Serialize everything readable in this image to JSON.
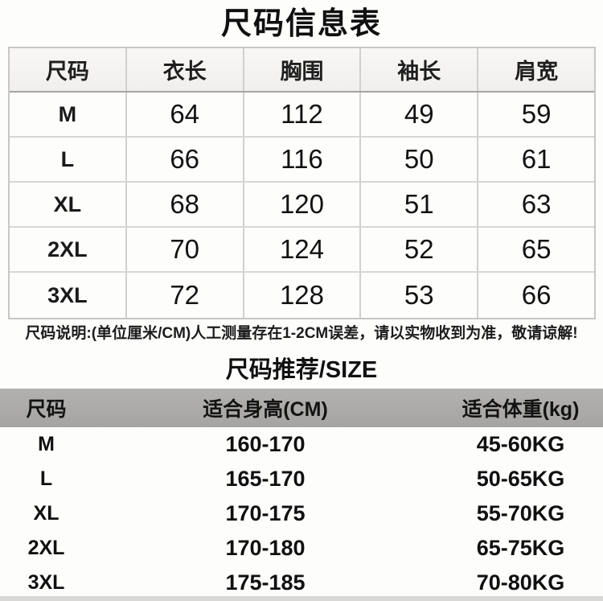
{
  "title": "尺码信息表",
  "size_table": {
    "headers": [
      "尺码",
      "衣长",
      "胸围",
      "袖长",
      "肩宽"
    ],
    "rows": [
      [
        "M",
        "64",
        "112",
        "49",
        "59"
      ],
      [
        "L",
        "66",
        "116",
        "50",
        "61"
      ],
      [
        "XL",
        "68",
        "120",
        "51",
        "63"
      ],
      [
        "2XL",
        "70",
        "124",
        "52",
        "65"
      ],
      [
        "3XL",
        "72",
        "128",
        "53",
        "66"
      ]
    ]
  },
  "note": "尺码说明:(单位厘米/CM)人工测量存在1-2CM误差，请以实物收到为准，敬请谅解!",
  "recommend": {
    "title": "尺码推荐/SIZE"
  },
  "recommend_table": {
    "headers": [
      "尺码",
      "适合身高(CM)",
      "适合体重(kg)"
    ],
    "rows": [
      [
        "M",
        "160-170",
        "45-60KG"
      ],
      [
        "L",
        "165-170",
        "50-65KG"
      ],
      [
        "XL",
        "170-175",
        "55-70KG"
      ],
      [
        "2XL",
        "170-180",
        "65-75KG"
      ],
      [
        "3XL",
        "175-185",
        "70-80KG"
      ]
    ]
  },
  "colors": {
    "header_band_gray": "#a9a8a6",
    "table_header_bg": "#f3f1ef",
    "table_border": "#c9c7c4",
    "row_line": "#d8d6d3",
    "text": "#161616",
    "bottom_strip": "#d9d8d6"
  },
  "chart_data": [
    {
      "type": "table",
      "title": "尺码信息表",
      "columns": [
        "尺码",
        "衣长",
        "胸围",
        "袖长",
        "肩宽"
      ],
      "rows": [
        [
          "M",
          64,
          112,
          49,
          59
        ],
        [
          "L",
          66,
          116,
          50,
          61
        ],
        [
          "XL",
          68,
          120,
          51,
          63
        ],
        [
          "2XL",
          70,
          124,
          52,
          65
        ],
        [
          "3XL",
          72,
          128,
          53,
          66
        ]
      ],
      "units": "cm",
      "note": "尺码说明:(单位厘米/CM)人工测量存在1-2CM误差，请以实物收到为准，敬请谅解!"
    },
    {
      "type": "table",
      "title": "尺码推荐/SIZE",
      "columns": [
        "尺码",
        "适合身高(CM)",
        "适合体重(kg)"
      ],
      "rows": [
        [
          "M",
          "160-170",
          "45-60KG"
        ],
        [
          "L",
          "165-170",
          "50-65KG"
        ],
        [
          "XL",
          "170-175",
          "55-70KG"
        ],
        [
          "2XL",
          "170-180",
          "65-75KG"
        ],
        [
          "3XL",
          "175-185",
          "70-80KG"
        ]
      ]
    }
  ]
}
